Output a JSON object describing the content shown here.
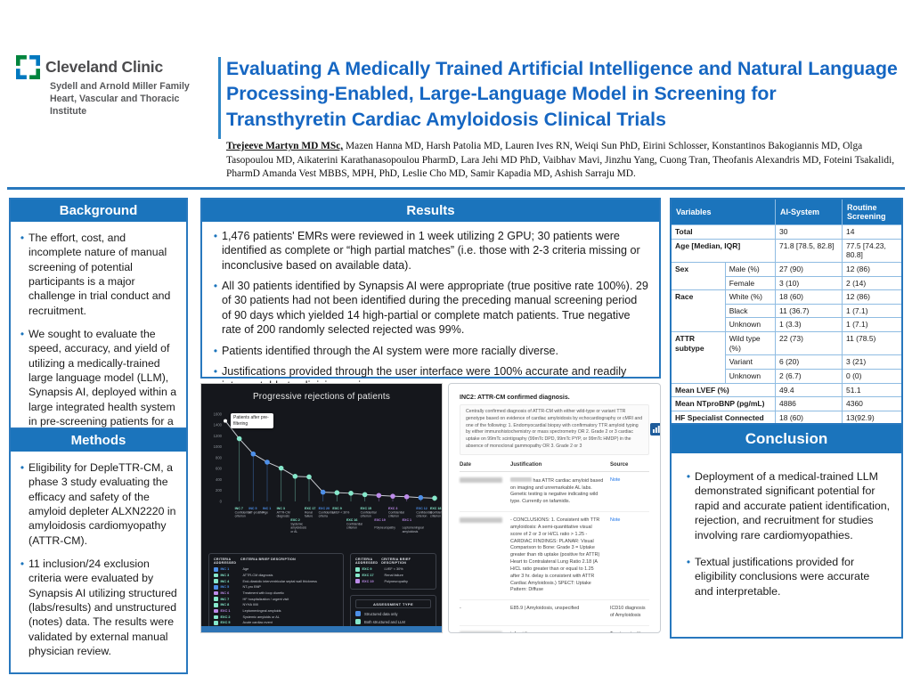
{
  "header": {
    "logo": {
      "name": "Cleveland Clinic",
      "sub1": "Sydell and Arnold Miller Family",
      "sub2": "Heart, Vascular and Thoracic Institute"
    },
    "title": "Evaluating A Medically Trained Artificial Intelligence and Natural Language Processing-Enabled, Large-Language Model in Screening for Transthyretin Cardiac Amyloidosis Clinical Trials",
    "authors_lead": "Trejeeve Martyn MD MSc,",
    "authors_rest": " Mazen Hanna MD, Harsh Patolia MD, Lauren Ives RN,  Weiqi Sun PhD, Eirini Schlosser, Konstantinos Bakogiannis MD, Olga Tasopoulou MD, Aikaterini Karathanasopoulou PharmD, Lara Jehi MD PhD, Vaibhav Mavi, Jinzhu Yang, Cuong Tran, Theofanis Alexandris MD, Foteini Tsakalidi, PharmD Amanda Vest MBBS, MPH,  PhD, Leslie Cho MD, Samir Kapadia MD, Ashish Sarraju MD."
  },
  "sections": {
    "background": {
      "title": "Background",
      "bullets": [
        "The effort, cost, and incomplete nature of manual screening of potential participants is a major challenge in trial conduct and recruitment.",
        "We sought to evaluate the speed, accuracy, and yield of utilizing a medically-trained large language model (LLM), Synapsis AI, deployed within a large integrated health system in pre-screening patients for a cardiac amyloidosis clinical trial."
      ]
    },
    "methods": {
      "title": "Methods",
      "bullets": [
        "Eligibility for DepleTTR-CM, a phase 3 study evaluating the efficacy and safety of the amyloid depleter ALXN2220 in amyloidosis cardiomyopathy (ATTR-CM).",
        "11 inclusion/24 exclusion criteria were evaluated by Synapsis AI utilizing structured (labs/results) and unstructured (notes) data. The results were validated by external manual physician review."
      ]
    },
    "results": {
      "title": "Results",
      "bullets": [
        "1,476 patients' EMRs were reviewed in 1 week utilizing 2 GPU; 30 patients were identified as complete or “high partial matches” (i.e. those with 2-3 criteria missing or inconclusive based on available data).",
        "All 30 patients identified by Synapsis AI were appropriate (true positive rate 100%). 29 of 30 patients had not been identified during the preceding manual screening period of 90 days which yielded 14 high-partial or complete match patients. True negative rate of 200 randomly selected rejected was 99%.",
        "Patients identified through the AI system were more racially diverse.",
        "Justifications provided through the user interface were 100% accurate and readily interpretable to clinician reviewers."
      ]
    },
    "conclusion": {
      "title": "Conclusion",
      "bullets": [
        "Deployment of a medical-trained LLM demonstrated significant potential for rapid and accurate patient identification, rejection, and recruitment for studies involving rare cardiomyopathies.",
        "Textual justifications provided for eligibility conclusions were accurate and interpretable."
      ]
    }
  },
  "table": {
    "headers": [
      "Variables",
      "AI-System",
      "Routine Screening"
    ],
    "rows": [
      {
        "group": "Total",
        "span": 1,
        "sub": null,
        "ai": "30",
        "routine": "14"
      },
      {
        "group": "Age [Median, IQR]",
        "span": 1,
        "sub": null,
        "ai": "71.8 [78.5, 82.8]",
        "routine": "77.5 [74.23, 80.8]"
      },
      {
        "group": "Sex",
        "span": 2,
        "sub": "Male (%)",
        "ai": "27 (90)",
        "routine": "12 (86)"
      },
      {
        "sub": "Female",
        "ai": "3 (10)",
        "routine": "2 (14)"
      },
      {
        "group": "Race",
        "span": 3,
        "sub": "White (%)",
        "ai": "18 (60)",
        "routine": "12 (86)"
      },
      {
        "sub": "Black",
        "ai": "11 (36.7)",
        "routine": "1 (7.1)"
      },
      {
        "sub": "Unknown",
        "ai": "1 (3.3)",
        "routine": "1 (7.1)"
      },
      {
        "group": "ATTR subtype",
        "span": 3,
        "sub": "Wild type (%)",
        "ai": "22 (73)",
        "routine": "11 (78.5)"
      },
      {
        "sub": "Variant",
        "ai": "6 (20)",
        "routine": "3 (21)"
      },
      {
        "sub": "Unknown",
        "ai": "2 (6.7)",
        "routine": "0 (0)"
      },
      {
        "group": "Mean LVEF (%)",
        "span": 1,
        "sub": null,
        "ai": "49.4",
        "routine": "51.1"
      },
      {
        "group": "Mean NTproBNP (pg/mL)",
        "span": 1,
        "sub": null,
        "ai": "4886",
        "routine": "4360"
      },
      {
        "group": "HF Specialist Connected (%)",
        "span": 1,
        "sub": null,
        "ai": "18 (60)",
        "routine": "13(92.9)"
      }
    ]
  },
  "chart_data": {
    "type": "line",
    "title": "Progressive rejections of patients",
    "annotation": "Patients after pre-filtering",
    "ylim": [
      0,
      1600
    ],
    "yticks": [
      0,
      200,
      400,
      600,
      800,
      1000,
      1200,
      1400,
      1600
    ],
    "grid": false,
    "legend_position": "bottom",
    "points": [
      {
        "code": "",
        "desc": "Patients after pre-filtering",
        "value": 1476,
        "type": "start",
        "label_row": 0
      },
      {
        "code": "INC 7",
        "desc": "Confidential criterion",
        "value": 1150,
        "type": "both",
        "label_row": 1
      },
      {
        "code": "INC 5",
        "desc": "NT-proBNP",
        "value": 870,
        "type": "structured",
        "label_row": 1
      },
      {
        "code": "INC 1",
        "desc": "Age",
        "value": 720,
        "type": "structured",
        "label_row": 1
      },
      {
        "code": "INC 3",
        "desc": "ATTR-CM diagnosis",
        "value": 610,
        "type": "both",
        "label_row": 1
      },
      {
        "code": "EXC 2",
        "desc": "Systemic amyloidosis or AL",
        "value": 460,
        "type": "both",
        "label_row": 2
      },
      {
        "code": "EXC 17",
        "desc": "Renal failure",
        "value": 450,
        "type": "both",
        "label_row": 1
      },
      {
        "code": "EXC 20",
        "desc": "Confidential criteria",
        "value": 170,
        "type": "structured",
        "label_row": 1
      },
      {
        "code": "EXC 9",
        "desc": "LVEF < 30%",
        "value": 160,
        "type": "both",
        "label_row": 1
      },
      {
        "code": "EXC 16",
        "desc": "Confidential criterion",
        "value": 150,
        "type": "both",
        "label_row": 2
      },
      {
        "code": "EXC 15",
        "desc": "Confidential criterion",
        "value": 125,
        "type": "both",
        "label_row": 1
      },
      {
        "code": "EXC 19",
        "desc": "Polyneuropathy",
        "value": 110,
        "type": "llm",
        "label_row": 2
      },
      {
        "code": "EXC 3",
        "desc": "Confidential criterion",
        "value": 95,
        "type": "llm",
        "label_row": 1
      },
      {
        "code": "EXC 1",
        "desc": "Leptomeningeal amyloidosis",
        "value": 85,
        "type": "llm",
        "label_row": 2
      },
      {
        "code": "EXC 12",
        "desc": "Confidential criterion",
        "value": 70,
        "type": "structured",
        "label_row": 1
      },
      {
        "code": "EXC 18",
        "desc": "Confidential criterion",
        "value": 60,
        "type": "both",
        "label_row": 1
      }
    ]
  },
  "dark_panel": {
    "criteria_left": {
      "col1": "CRITERIA ADDRESSED",
      "col2": "CRITERIA BRIEF DESCRIPTION",
      "rows": [
        {
          "code": "INC 1",
          "desc": "Age",
          "type": "structured"
        },
        {
          "code": "INC 3",
          "desc": "ATTR-CM diagnosis",
          "type": "both"
        },
        {
          "code": "INC 4",
          "desc": "End-diastolic interventricular septal wall thickness",
          "type": "both"
        },
        {
          "code": "INC 5",
          "desc": "NT-pro BNP",
          "type": "structured"
        },
        {
          "code": "INC 6",
          "desc": "Treatment with loop diuretic",
          "type": "llm"
        },
        {
          "code": "INC 7",
          "desc": "HF hospitalization / urgent visit",
          "type": "both"
        },
        {
          "code": "INC 8",
          "desc": "NYHA II/III",
          "type": "both"
        },
        {
          "code": "EXC 1",
          "desc": "Leptomeningeal amyloids",
          "type": "llm"
        },
        {
          "code": "EXC 2",
          "desc": "Systemic amyloids or AL",
          "type": "both"
        },
        {
          "code": "EXC 5",
          "desc": "Acute cardiac event",
          "type": "both"
        },
        {
          "code": "EXC 8",
          "desc": "Uncontrolled arrythmia",
          "type": "both"
        }
      ]
    },
    "criteria_right": {
      "col1": "CRITERIA ADDRESSED",
      "col2": "CRITERIA BRIEF DESCRIPTION",
      "rows": [
        {
          "code": "EXC 9",
          "desc": "LVEF < 30%",
          "type": "both"
        },
        {
          "code": "EXC 17",
          "desc": "Renal failure",
          "type": "both"
        },
        {
          "code": "EXC 19",
          "desc": "Polyneuropathy",
          "type": "llm"
        }
      ]
    },
    "assessment": {
      "title": "ASSESSMENT TYPE",
      "items": [
        {
          "label": "Structured data only",
          "type": "structured"
        },
        {
          "label": "Both structured and LLM",
          "type": "both"
        },
        {
          "label": "LLM questions only",
          "type": "llm"
        }
      ]
    }
  },
  "ui_panel": {
    "criterion_title": "INC2: ATTR-CM confirmed diagnosis.",
    "criterion_text": "Centrally confirmed diagnosis of ATTR-CM with either wild-type or variant TTR genotype based on evidence of cardiac amyloidosis by echocardiography or cMRI and one of the following: 1. Endomyocardial biopsy with confirmatory TTR amyloid typing by either immunohistochemistry or mass spectrometry OR 2. Grade 2 or 3 cardiac uptake on 99mTc scintigraphy (99mTc DPD, 99mTc PYP, or 99mTc HMDP) in the absence of monoclonal gammopathy OR 3. Grade 2 or 3",
    "table": {
      "headers": [
        "Date",
        "Justification",
        "Source"
      ],
      "rows": [
        {
          "date": "",
          "date_redacted": true,
          "name_redacted": true,
          "justification": " has ATTR cardiac amyloid based on imaging and unremarkable AL labs. Genetic testing is negative indicating wild type. Currently on tafamidis.",
          "source": "Note",
          "source_link": true
        },
        {
          "date": "",
          "date_redacted": true,
          "name_redacted": false,
          "justification": "- CONCLUSIONS: 1. Consistent with TTR amyloidosis: A semi-quantitative visual score of 2 or 3 or H/CL ratio > 1.25 - CARDIAC FINDINGS: PLANAR: Visual Comparison to Bone: Grade 3 = Uptake greater than rib uptake (positive for ATTR) Heart to Contralateral Lung Ratio 2.18 (A H/CL ratio greater than or equal to 1.25 after 3 hr. delay is consistent with ATTR Cardiac Amyloidosis.) SPECT: Uptake Pattern: Diffuse",
          "source": "Note",
          "source_link": true
        },
        {
          "date": "-",
          "date_redacted": false,
          "name_redacted": false,
          "justification": "E85.9 | Amyloidosis, unspecified",
          "source": "ICD10 diagnosis of Amyloidosis",
          "source_link": false
        },
        {
          "date": "",
          "date_redacted": true,
          "name_redacted": false,
          "justification": "tafamidis",
          "source": "Treatment with tafamidis",
          "source_link": false
        }
      ]
    }
  },
  "colors": {
    "accent_blue": "#1b74bc",
    "title_blue": "#1566c2",
    "link_blue": "#1a73e8",
    "chart_bg": "#15171c",
    "dot_structured": "#4d8fe8",
    "dot_both": "#86e8cb",
    "dot_llm": "#bd8bea",
    "dot_start": "#ffffff",
    "logo_green": "#00843d",
    "logo_blue": "#0078bf"
  }
}
